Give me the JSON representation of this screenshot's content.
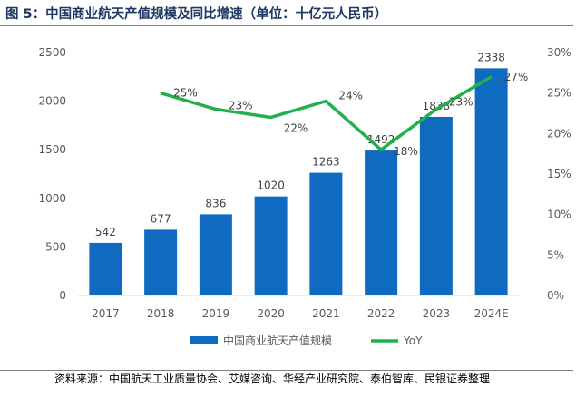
{
  "title": "图 5：中国商业航天产值规模及同比增速（单位：十亿元人民币）",
  "source": "资料来源：中国航天工业质量协会、艾媒咨询、华经产业研究院、泰伯智库、民银证券整理",
  "chart_data": {
    "type": "bar",
    "categories": [
      "2017",
      "2018",
      "2019",
      "2020",
      "2021",
      "2022",
      "2023",
      "2024E"
    ],
    "series": [
      {
        "name": "中国商业航天产值规模",
        "type": "bar",
        "axis": "left",
        "color": "#0e6bbf",
        "values": [
          542,
          677,
          836,
          1020,
          1263,
          1492,
          1838,
          2338
        ]
      },
      {
        "name": "YoY",
        "type": "line",
        "axis": "right",
        "color": "#21b04b",
        "values": [
          null,
          0.25,
          0.23,
          0.22,
          0.24,
          0.18,
          0.23,
          0.27
        ]
      }
    ],
    "bar_labels": [
      "542",
      "677",
      "836",
      "1020",
      "1263",
      "1492",
      "1838",
      "2338"
    ],
    "line_labels": [
      "",
      "25%",
      "23%",
      "22%",
      "24%",
      "18%",
      "23%",
      "27%"
    ],
    "left_axis": {
      "ylim": [
        0,
        2500
      ],
      "ticks": [
        "0",
        "500",
        "1000",
        "1500",
        "2000",
        "2500"
      ]
    },
    "right_axis": {
      "ylim": [
        0,
        0.3
      ],
      "ticks": [
        "0%",
        "5%",
        "10%",
        "15%",
        "20%",
        "25%",
        "30%"
      ]
    },
    "legend_position": "bottom",
    "grid": false
  }
}
